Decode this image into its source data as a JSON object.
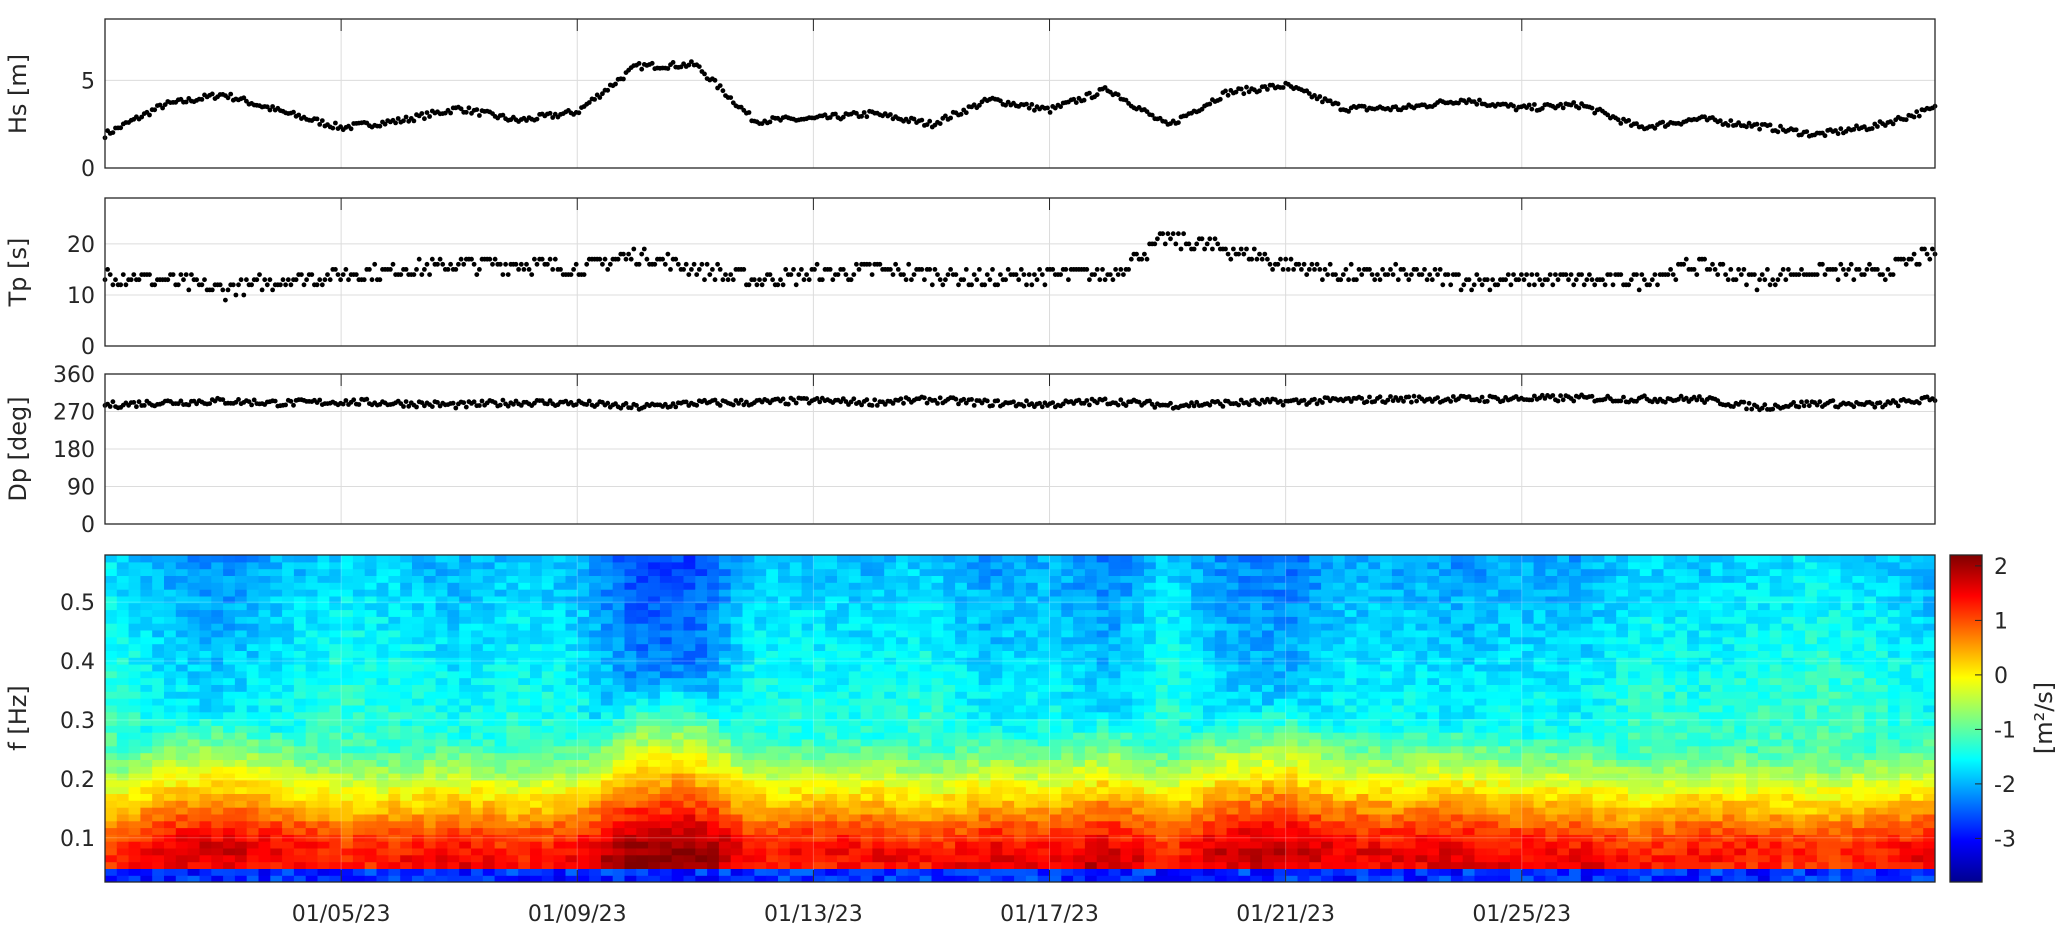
{
  "chart_data": [
    {
      "type": "scatter",
      "ylabel": "Hs [m]",
      "x_range_days": [
        0,
        31
      ],
      "ylim": [
        0,
        8.5
      ],
      "yticks": [
        0,
        5
      ],
      "grid": true,
      "color": "#000000",
      "series": [
        {
          "x_days": [
            0,
            1,
            2,
            3,
            4,
            5,
            6,
            7,
            8,
            9,
            10,
            11,
            12,
            13,
            14,
            15,
            16,
            17,
            18,
            19,
            20,
            21,
            22,
            23,
            24,
            25,
            26,
            27,
            28,
            29,
            30,
            31
          ],
          "values": [
            1.9,
            3.6,
            4.2,
            3.2,
            2.3,
            2.7,
            3.4,
            2.7,
            3.2,
            5.8,
            5.9,
            2.7,
            2.8,
            3.1,
            2.5,
            3.9,
            3.3,
            4.5,
            2.4,
            4.3,
            4.7,
            3.4,
            3.4,
            3.9,
            3.4,
            3.6,
            2.3,
            2.8,
            2.4,
            1.9,
            2.4,
            3.4
          ]
        }
      ]
    },
    {
      "type": "scatter",
      "ylabel": "Tp [s]",
      "x_range_days": [
        0,
        31
      ],
      "ylim": [
        0,
        29
      ],
      "yticks": [
        0,
        10,
        20
      ],
      "grid": true,
      "color": "#000000",
      "series": [
        {
          "x_days": [
            0,
            1,
            2,
            3,
            4,
            5,
            6,
            7,
            8,
            9,
            10,
            11,
            12,
            13,
            14,
            15,
            16,
            17,
            18,
            19,
            20,
            21,
            22,
            23,
            24,
            25,
            26,
            27,
            28,
            29,
            30,
            31
          ],
          "values": [
            14,
            13,
            11,
            13,
            14,
            15,
            16,
            16,
            15,
            18,
            15,
            13,
            14,
            15,
            14,
            13,
            14,
            14,
            21,
            19,
            16,
            14,
            14,
            13,
            13,
            13,
            13,
            16,
            13,
            15,
            14,
            18
          ]
        }
      ]
    },
    {
      "type": "scatter",
      "ylabel": "Dp [deg]",
      "x_range_days": [
        0,
        31
      ],
      "ylim": [
        0,
        360
      ],
      "yticks": [
        0,
        90,
        180,
        270,
        360
      ],
      "grid": true,
      "color": "#000000",
      "series": [
        {
          "x_days": [
            0,
            1,
            2,
            3,
            4,
            5,
            6,
            7,
            8,
            9,
            10,
            11,
            12,
            13,
            14,
            15,
            16,
            17,
            18,
            19,
            20,
            21,
            22,
            23,
            24,
            25,
            26,
            27,
            28,
            29,
            30,
            31
          ],
          "values": [
            285,
            292,
            295,
            290,
            293,
            290,
            285,
            292,
            290,
            280,
            290,
            292,
            296,
            292,
            298,
            290,
            287,
            295,
            285,
            290,
            293,
            297,
            300,
            300,
            301,
            302,
            300,
            300,
            280,
            290,
            285,
            300
          ]
        }
      ]
    },
    {
      "type": "heatmap",
      "ylabel": "f [Hz]",
      "x_range_days": [
        0,
        31
      ],
      "ylim": [
        0.025,
        0.58
      ],
      "yticks": [
        0.1,
        0.2,
        0.3,
        0.4,
        0.5
      ],
      "xticks_days": [
        4,
        8,
        12,
        16,
        20,
        24
      ],
      "xtick_labels": [
        "01/05/23",
        "01/09/23",
        "01/13/23",
        "01/17/23",
        "01/21/23",
        "01/25/23"
      ],
      "colormap": "jet",
      "colorbar": {
        "label": "[m²/s]",
        "clim": [
          -3.8,
          2.2
        ],
        "ticks": [
          -3,
          -2,
          -1,
          0,
          1,
          2
        ]
      }
    }
  ]
}
